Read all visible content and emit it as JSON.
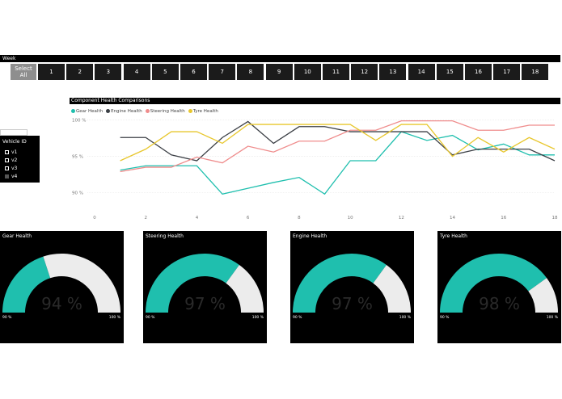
{
  "week": {
    "label": "Week",
    "select_all": "Select All",
    "weeks": [
      "1",
      "2",
      "3",
      "4",
      "5",
      "6",
      "7",
      "8",
      "9",
      "10",
      "11",
      "12",
      "13",
      "14",
      "15",
      "16",
      "17",
      "18"
    ]
  },
  "chart": {
    "title": "Component Health Comparisons",
    "legend": [
      {
        "name": "Gear Health",
        "color": "#1fbfae"
      },
      {
        "name": "Engine Health",
        "color": "#3b3f45"
      },
      {
        "name": "Steering Health",
        "color": "#ef8c8c"
      },
      {
        "name": "Tyre Health",
        "color": "#e8c72e"
      }
    ]
  },
  "chart_data": {
    "type": "line",
    "x": [
      1,
      2,
      3,
      4,
      5,
      6,
      7,
      8,
      9,
      10,
      11,
      12,
      13,
      14,
      15,
      16,
      17,
      18
    ],
    "xticks": [
      "0",
      "2",
      "4",
      "6",
      "8",
      "10",
      "12",
      "14",
      "16",
      "18"
    ],
    "xtick_values": [
      0,
      2,
      4,
      6,
      8,
      10,
      12,
      14,
      16,
      18
    ],
    "yticks": [
      "90 %",
      "95 %",
      "100 %"
    ],
    "ytick_values": [
      90,
      95,
      100
    ],
    "xlim": [
      0,
      18
    ],
    "ylim": [
      89.5,
      100.3
    ],
    "series": [
      {
        "name": "Gear Health",
        "color": "#1fbfae",
        "values": [
          93.1,
          93.7,
          93.7,
          93.7,
          89.8,
          90.6,
          91.4,
          92.1,
          89.8,
          94.4,
          94.4,
          98.4,
          97.2,
          97.9,
          95.9,
          96.7,
          95.2,
          95.2
        ]
      },
      {
        "name": "Engine Health",
        "color": "#3b3f45",
        "values": [
          97.6,
          97.6,
          95.2,
          94.4,
          97.6,
          99.8,
          96.8,
          99.1,
          99.1,
          98.4,
          98.4,
          98.4,
          98.4,
          95.2,
          96.0,
          96.0,
          96.0,
          94.4
        ]
      },
      {
        "name": "Steering Health",
        "color": "#ef8c8c",
        "values": [
          92.9,
          93.5,
          93.5,
          94.9,
          94.1,
          96.4,
          95.6,
          97.1,
          97.1,
          98.6,
          98.6,
          99.9,
          99.9,
          99.9,
          98.6,
          98.6,
          99.3,
          99.3
        ]
      },
      {
        "name": "Tyre Health",
        "color": "#e8c72e",
        "values": [
          94.4,
          96.0,
          98.4,
          98.4,
          96.8,
          99.4,
          99.4,
          99.4,
          99.4,
          99.4,
          97.2,
          99.4,
          99.4,
          95.0,
          97.6,
          95.6,
          97.6,
          96.0
        ]
      }
    ]
  },
  "vehicle": {
    "title": "Vehicle ID",
    "options": [
      "v1",
      "v2",
      "v3",
      "v4"
    ]
  },
  "gauges": [
    {
      "title": "Gear Health",
      "value": 94,
      "display": "94 %",
      "min": "90 %",
      "max": "100 %",
      "fill_fraction": 0.4,
      "color": "#1fbfae"
    },
    {
      "title": "Steering Health",
      "value": 97,
      "display": "97 %",
      "min": "90 %",
      "max": "100 %",
      "fill_fraction": 0.7,
      "color": "#1fbfae"
    },
    {
      "title": "Engine Health",
      "value": 97,
      "display": "97 %",
      "min": "90 %",
      "max": "100 %",
      "fill_fraction": 0.7,
      "color": "#1fbfae"
    },
    {
      "title": "Tyre Health",
      "value": 98,
      "display": "98 %",
      "min": "90 %",
      "max": "100 %",
      "fill_fraction": 0.8,
      "color": "#1fbfae"
    }
  ]
}
